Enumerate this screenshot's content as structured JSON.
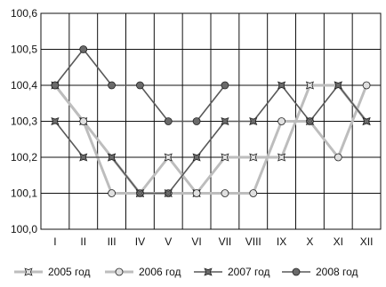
{
  "chart_data": {
    "type": "line",
    "title": "",
    "xlabel": "",
    "ylabel": "",
    "categories": [
      "I",
      "II",
      "III",
      "IV",
      "V",
      "VI",
      "VII",
      "VIII",
      "IX",
      "X",
      "XI",
      "XII"
    ],
    "ylim": [
      100.0,
      100.6
    ],
    "yticks": [
      "100,0",
      "100,1",
      "100,2",
      "100,3",
      "100,4",
      "100,5",
      "100,6"
    ],
    "grid": true,
    "legend_position": "bottom",
    "series": [
      {
        "name": "2005 год",
        "marker": "star",
        "color": "#bdbdbd",
        "values": [
          100.4,
          100.3,
          100.2,
          100.1,
          100.2,
          100.1,
          100.2,
          100.2,
          100.2,
          100.4,
          100.4,
          100.3
        ]
      },
      {
        "name": "2006 год",
        "marker": "circle",
        "color": "#bdbdbd",
        "values": [
          100.4,
          100.3,
          100.1,
          100.1,
          100.1,
          100.1,
          100.1,
          100.1,
          100.3,
          100.3,
          100.2,
          100.4
        ]
      },
      {
        "name": "2007 год",
        "marker": "star",
        "color": "#595959",
        "values": [
          100.3,
          100.2,
          100.2,
          100.1,
          100.1,
          100.2,
          100.3,
          100.3,
          100.4,
          100.3,
          100.4,
          100.3
        ]
      },
      {
        "name": "2008 год",
        "marker": "circle",
        "color": "#595959",
        "values": [
          100.4,
          100.5,
          100.4,
          100.4,
          100.3,
          100.3,
          100.4,
          null,
          null,
          null,
          null,
          null
        ]
      }
    ]
  }
}
